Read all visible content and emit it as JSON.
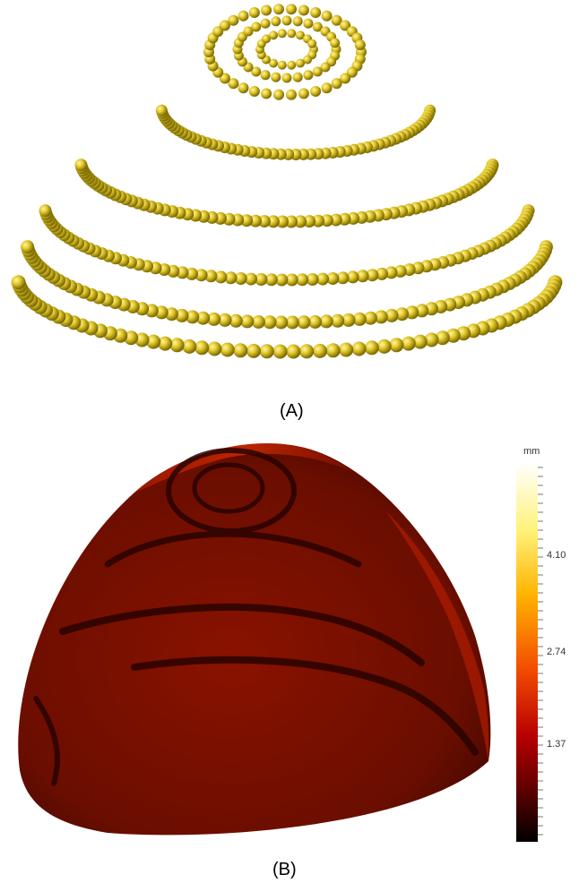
{
  "panels": [
    {
      "caption": "(A)",
      "subject": "3D point cloud of yellow spheres arranged in concentric rings on a dome"
    },
    {
      "caption": "(B)",
      "subject": "dome-shaped surface rendered with dark-red heat colormap"
    }
  ],
  "colorbar": {
    "unit": "mm",
    "ticks": [
      "4.10",
      "2.74",
      "1.37"
    ],
    "colors": [
      "#ffffff",
      "#fff27a",
      "#ffb300",
      "#f24a00",
      "#b80000",
      "#5a0000",
      "#000000"
    ]
  },
  "colors": {
    "sphere": "#e3c82b",
    "sphere_dark": "#7a6a00",
    "surface_base": "#8a1200",
    "surface_dark": "#3a0500"
  }
}
